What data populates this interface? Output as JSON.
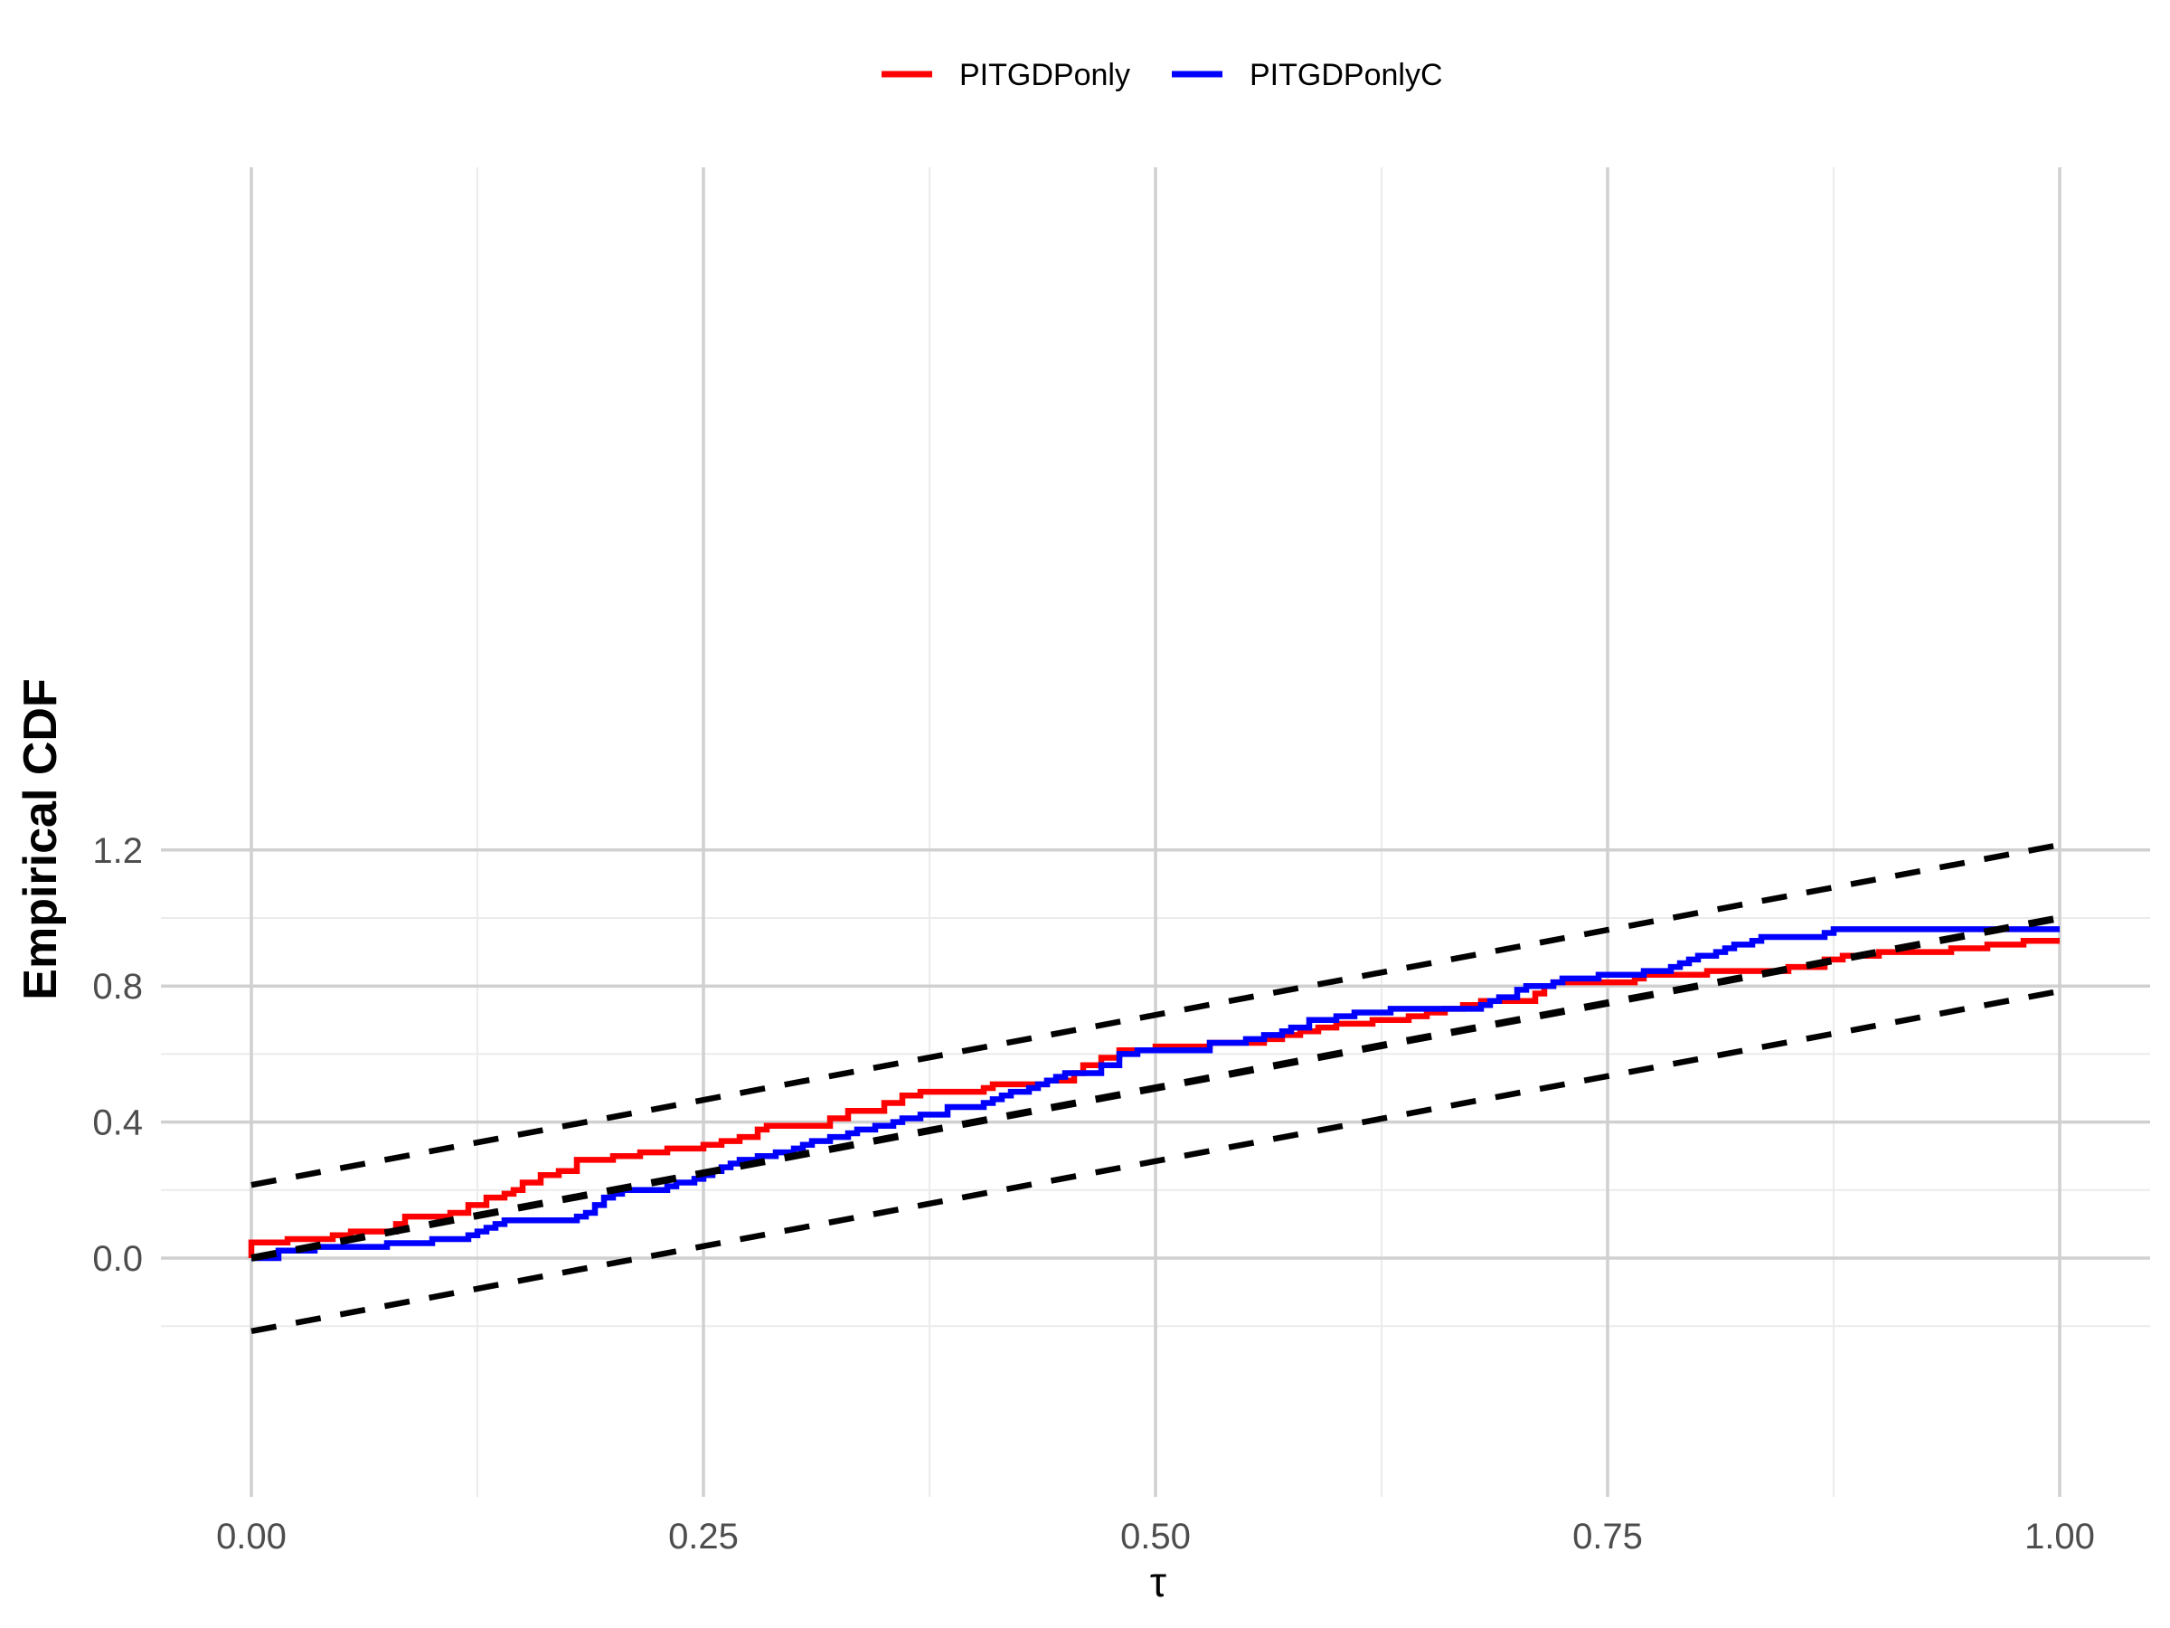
{
  "chart_data": {
    "type": "line",
    "title": "",
    "xlabel": "τ",
    "ylabel": "Empirical CDF",
    "xlim": [
      -0.1,
      1.05
    ],
    "ylim": [
      -0.28,
      1.28
    ],
    "x_ticks": [
      0.0,
      0.25,
      0.5,
      0.75,
      1.0
    ],
    "x_tick_labels": [
      "0.00",
      "0.25",
      "0.50",
      "0.75",
      "1.00"
    ],
    "y_ticks": [
      0.0,
      0.4,
      0.8,
      1.2
    ],
    "y_tick_labels": [
      "0.0",
      "0.4",
      "0.8",
      "1.2"
    ],
    "grid": true,
    "legend_position": "top",
    "series": [
      {
        "name": "PITGDPonly",
        "color": "#ff0000",
        "step": true,
        "points": [
          [
            0.0,
            0.0
          ],
          [
            0.0,
            0.046
          ],
          [
            0.02,
            0.056
          ],
          [
            0.045,
            0.067
          ],
          [
            0.055,
            0.078
          ],
          [
            0.08,
            0.1
          ],
          [
            0.085,
            0.122
          ],
          [
            0.11,
            0.133
          ],
          [
            0.12,
            0.156
          ],
          [
            0.13,
            0.178
          ],
          [
            0.14,
            0.189
          ],
          [
            0.145,
            0.2
          ],
          [
            0.15,
            0.222
          ],
          [
            0.16,
            0.244
          ],
          [
            0.17,
            0.256
          ],
          [
            0.18,
            0.289
          ],
          [
            0.2,
            0.3
          ],
          [
            0.215,
            0.311
          ],
          [
            0.23,
            0.322
          ],
          [
            0.25,
            0.333
          ],
          [
            0.26,
            0.344
          ],
          [
            0.27,
            0.356
          ],
          [
            0.28,
            0.378
          ],
          [
            0.285,
            0.389
          ],
          [
            0.32,
            0.411
          ],
          [
            0.33,
            0.433
          ],
          [
            0.35,
            0.456
          ],
          [
            0.36,
            0.478
          ],
          [
            0.37,
            0.489
          ],
          [
            0.405,
            0.5
          ],
          [
            0.41,
            0.511
          ],
          [
            0.44,
            0.522
          ],
          [
            0.455,
            0.544
          ],
          [
            0.46,
            0.567
          ],
          [
            0.47,
            0.589
          ],
          [
            0.48,
            0.611
          ],
          [
            0.5,
            0.622
          ],
          [
            0.53,
            0.633
          ],
          [
            0.56,
            0.644
          ],
          [
            0.57,
            0.656
          ],
          [
            0.58,
            0.667
          ],
          [
            0.59,
            0.678
          ],
          [
            0.6,
            0.689
          ],
          [
            0.62,
            0.7
          ],
          [
            0.64,
            0.711
          ],
          [
            0.65,
            0.722
          ],
          [
            0.66,
            0.733
          ],
          [
            0.67,
            0.744
          ],
          [
            0.68,
            0.756
          ],
          [
            0.71,
            0.778
          ],
          [
            0.715,
            0.8
          ],
          [
            0.72,
            0.811
          ],
          [
            0.765,
            0.822
          ],
          [
            0.77,
            0.833
          ],
          [
            0.805,
            0.844
          ],
          [
            0.85,
            0.856
          ],
          [
            0.87,
            0.867
          ],
          [
            0.87,
            0.878
          ],
          [
            0.88,
            0.889
          ],
          [
            0.9,
            0.9
          ],
          [
            0.94,
            0.911
          ],
          [
            0.96,
            0.922
          ],
          [
            0.98,
            0.933
          ],
          [
            1.0,
            0.933
          ]
        ]
      },
      {
        "name": "PITGDPonlyC",
        "color": "#0000ff",
        "step": true,
        "points": [
          [
            0.0,
            0.0
          ],
          [
            0.01,
            0.0
          ],
          [
            0.015,
            0.022
          ],
          [
            0.035,
            0.033
          ],
          [
            0.075,
            0.044
          ],
          [
            0.1,
            0.056
          ],
          [
            0.12,
            0.067
          ],
          [
            0.125,
            0.078
          ],
          [
            0.13,
            0.089
          ],
          [
            0.135,
            0.1
          ],
          [
            0.14,
            0.111
          ],
          [
            0.18,
            0.122
          ],
          [
            0.185,
            0.133
          ],
          [
            0.19,
            0.156
          ],
          [
            0.195,
            0.178
          ],
          [
            0.2,
            0.189
          ],
          [
            0.205,
            0.2
          ],
          [
            0.23,
            0.211
          ],
          [
            0.235,
            0.222
          ],
          [
            0.245,
            0.233
          ],
          [
            0.25,
            0.244
          ],
          [
            0.255,
            0.256
          ],
          [
            0.26,
            0.267
          ],
          [
            0.265,
            0.278
          ],
          [
            0.27,
            0.289
          ],
          [
            0.28,
            0.3
          ],
          [
            0.29,
            0.311
          ],
          [
            0.3,
            0.322
          ],
          [
            0.305,
            0.333
          ],
          [
            0.31,
            0.344
          ],
          [
            0.32,
            0.356
          ],
          [
            0.33,
            0.367
          ],
          [
            0.335,
            0.378
          ],
          [
            0.345,
            0.389
          ],
          [
            0.355,
            0.4
          ],
          [
            0.36,
            0.411
          ],
          [
            0.37,
            0.422
          ],
          [
            0.385,
            0.444
          ],
          [
            0.405,
            0.456
          ],
          [
            0.41,
            0.467
          ],
          [
            0.415,
            0.478
          ],
          [
            0.42,
            0.489
          ],
          [
            0.43,
            0.5
          ],
          [
            0.435,
            0.511
          ],
          [
            0.44,
            0.522
          ],
          [
            0.445,
            0.533
          ],
          [
            0.45,
            0.544
          ],
          [
            0.47,
            0.567
          ],
          [
            0.48,
            0.6
          ],
          [
            0.49,
            0.611
          ],
          [
            0.53,
            0.633
          ],
          [
            0.55,
            0.644
          ],
          [
            0.56,
            0.656
          ],
          [
            0.57,
            0.667
          ],
          [
            0.575,
            0.678
          ],
          [
            0.585,
            0.7
          ],
          [
            0.6,
            0.711
          ],
          [
            0.61,
            0.722
          ],
          [
            0.63,
            0.733
          ],
          [
            0.68,
            0.744
          ],
          [
            0.685,
            0.756
          ],
          [
            0.69,
            0.767
          ],
          [
            0.7,
            0.789
          ],
          [
            0.705,
            0.8
          ],
          [
            0.72,
            0.811
          ],
          [
            0.725,
            0.822
          ],
          [
            0.745,
            0.833
          ],
          [
            0.77,
            0.844
          ],
          [
            0.785,
            0.856
          ],
          [
            0.79,
            0.867
          ],
          [
            0.795,
            0.878
          ],
          [
            0.8,
            0.889
          ],
          [
            0.81,
            0.9
          ],
          [
            0.815,
            0.911
          ],
          [
            0.82,
            0.922
          ],
          [
            0.83,
            0.933
          ],
          [
            0.835,
            0.944
          ],
          [
            0.87,
            0.956
          ],
          [
            0.875,
            0.967
          ],
          [
            1.0,
            0.967
          ]
        ]
      }
    ],
    "reference_lines": [
      {
        "style": "dashed",
        "color": "#000000",
        "x": [
          0,
          1
        ],
        "y": [
          0.0,
          1.0
        ]
      },
      {
        "style": "dashed",
        "color": "#000000",
        "x": [
          0,
          1
        ],
        "y": [
          0.215,
          1.215
        ]
      },
      {
        "style": "dashed",
        "color": "#000000",
        "x": [
          0,
          1
        ],
        "y": [
          -0.215,
          0.785
        ]
      }
    ]
  }
}
